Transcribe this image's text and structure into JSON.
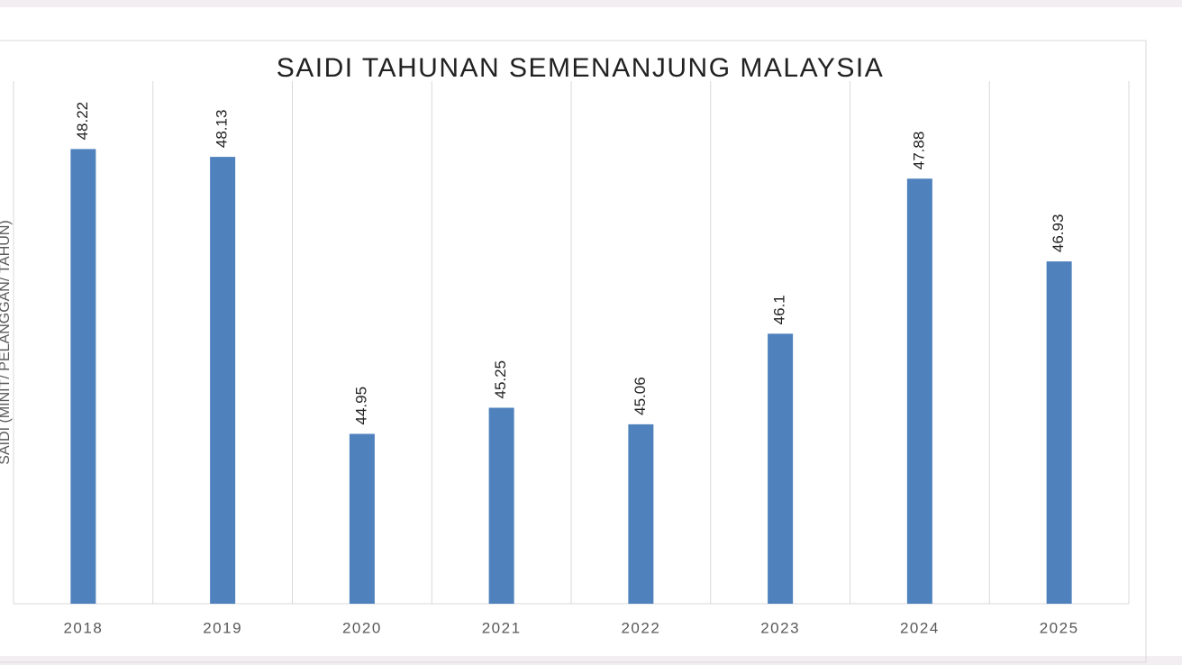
{
  "chart_data": {
    "type": "bar",
    "title": "SAIDI TAHUNAN SEMENANJUNG MALAYSIA",
    "y_label": "SAIDI (MINIT/ PELANGGAN/ TAHUN)",
    "categories": [
      "2018",
      "2019",
      "2020",
      "2021",
      "2022",
      "2023",
      "2024",
      "2025"
    ],
    "values": [
      48.22,
      48.13,
      44.95,
      45.25,
      45.06,
      46.1,
      47.88,
      46.93
    ],
    "color": "#4f81bd",
    "ylim": [
      43,
      49
    ]
  }
}
